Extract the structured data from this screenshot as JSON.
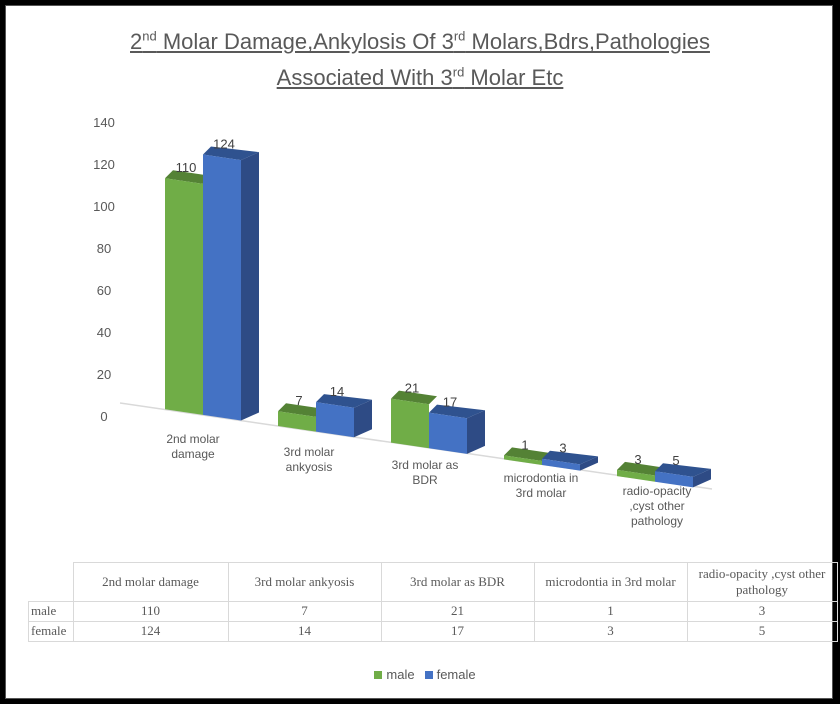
{
  "chart_data": {
    "type": "bar",
    "title": "2nd Molar Damage,Ankylosis Of 3rd Molars,Bdrs,Pathologies Associated With 3rd Molar Etc",
    "title_parts": {
      "a": "2",
      "a_sup": "nd",
      "b": " Molar Damage,Ankylosis Of 3",
      "b_sup": "rd",
      "c": " Molars,Bdrs,Pathologies",
      "d": "Associated With 3",
      "d_sup": "rd",
      "e": " Molar Etc"
    },
    "categories": [
      "2nd molar damage",
      "3rd molar ankyosis",
      "3rd molar as BDR",
      "microdontia in 3rd molar",
      "radio-opacity ,cyst other pathology"
    ],
    "axis_categories": [
      [
        "2nd molar",
        "damage"
      ],
      [
        "3rd molar",
        "ankyosis"
      ],
      [
        "3rd molar as",
        "BDR"
      ],
      [
        "microdontia in",
        "3rd molar"
      ],
      [
        "radio-opacity",
        ",cyst other",
        "pathology"
      ]
    ],
    "series": [
      {
        "name": "male",
        "color": "#70ad47",
        "values": [
          110,
          7,
          21,
          1,
          3
        ]
      },
      {
        "name": "female",
        "color": "#4472c4",
        "values": [
          124,
          14,
          17,
          3,
          5
        ]
      }
    ],
    "ylim": [
      0,
      140
    ],
    "yticks": [
      0,
      20,
      40,
      60,
      80,
      100,
      120,
      140
    ],
    "legend": "bottom",
    "data_table": true
  }
}
